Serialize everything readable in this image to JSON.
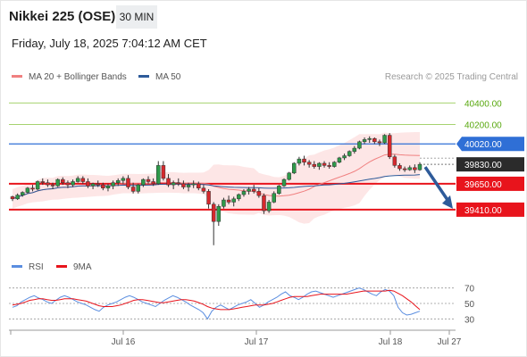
{
  "header": {
    "title": "Nikkei 225 (OSE)",
    "interval": "30 MIN",
    "datetime": "Friday, July 18, 2025 7:04:12 AM CET"
  },
  "legend": {
    "ma20": "MA 20 + Bollinger Bands",
    "ma50": "MA 50",
    "copyright": "Research © 2025 Trading Central"
  },
  "rsi_legend": {
    "rsi": "RSI",
    "ma9": "9MA"
  },
  "colors": {
    "ma20": "#f08080",
    "ma50": "#2e5b9a",
    "band": "#fde0e0",
    "resistance_green": "#a6d36f",
    "pivot_blue": "#2f6fd6",
    "support_red": "#e8141c",
    "current_dark": "#2b2b2b",
    "arrow": "#2e5b9a",
    "rsi": "#5b8ee0"
  },
  "chart_data": {
    "type": "candlestick",
    "y_range": [
      39020,
      40560
    ],
    "levels": [
      {
        "label": "40400.00",
        "value": 40400,
        "kind": "resistance"
      },
      {
        "label": "40200.00",
        "value": 40200,
        "kind": "resistance"
      },
      {
        "label": "40020.00",
        "value": 40020,
        "kind": "pivot"
      },
      {
        "label": "39830.00",
        "value": 39830,
        "kind": "last"
      },
      {
        "label": "39650.00",
        "value": 39650,
        "kind": "support"
      },
      {
        "label": "39410.00",
        "value": 39410,
        "kind": "support"
      }
    ],
    "x_ticks": [
      "Jul 16",
      "Jul 17",
      "Jul 18",
      "Jul 27"
    ],
    "rsi": {
      "levels": [
        70,
        50,
        30
      ],
      "labels": [
        "70",
        "50",
        "30"
      ],
      "rsi_values": [
        45,
        47,
        52,
        55,
        58,
        60,
        57,
        55,
        52,
        50,
        54,
        58,
        60,
        58,
        55,
        52,
        50,
        48,
        45,
        42,
        40,
        45,
        48,
        50,
        52,
        55,
        58,
        60,
        58,
        55,
        52,
        50,
        48,
        46,
        50,
        54,
        57,
        60,
        58,
        55,
        52,
        48,
        45,
        42,
        38,
        30,
        40,
        45,
        48,
        45,
        42,
        45,
        48,
        50,
        52,
        55,
        50,
        45,
        48,
        52,
        55,
        58,
        62,
        65,
        60,
        58,
        55,
        58,
        62,
        65,
        66,
        64,
        62,
        60,
        58,
        60,
        62,
        64,
        66,
        68,
        70,
        68,
        65,
        62,
        60,
        65,
        68,
        66,
        60,
        45,
        38,
        35,
        36,
        38,
        40
      ],
      "ma9_values": [
        48,
        49,
        50,
        52,
        54,
        55,
        56,
        56,
        55,
        54,
        54,
        55,
        56,
        56,
        56,
        55,
        54,
        53,
        51,
        49,
        47,
        46,
        46,
        46,
        47,
        48,
        50,
        52,
        54,
        55,
        55,
        54,
        53,
        52,
        51,
        51,
        52,
        53,
        54,
        55,
        55,
        54,
        53,
        51,
        49,
        46,
        44,
        43,
        42,
        42,
        42,
        43,
        44,
        45,
        46,
        47,
        48,
        48,
        48,
        49,
        50,
        52,
        54,
        56,
        58,
        59,
        59,
        59,
        59,
        60,
        61,
        62,
        62,
        62,
        62,
        62,
        62,
        62,
        63,
        64,
        65,
        66,
        66,
        66,
        66,
        66,
        66,
        67,
        66,
        63,
        60,
        56,
        52,
        47,
        42
      ]
    },
    "series": [
      {
        "name": "MA 20 + Bollinger Bands",
        "values": []
      },
      {
        "name": "MA 50",
        "values": []
      }
    ],
    "candles": [
      [
        39530,
        39540,
        39490,
        39510
      ],
      [
        39510,
        39560,
        39500,
        39545
      ],
      [
        39545,
        39580,
        39530,
        39570
      ],
      [
        39570,
        39620,
        39560,
        39610
      ],
      [
        39610,
        39640,
        39580,
        39600
      ],
      [
        39600,
        39680,
        39590,
        39670
      ],
      [
        39670,
        39700,
        39640,
        39660
      ],
      [
        39660,
        39690,
        39620,
        39640
      ],
      [
        39640,
        39660,
        39600,
        39630
      ],
      [
        39630,
        39700,
        39620,
        39690
      ],
      [
        39690,
        39710,
        39640,
        39660
      ],
      [
        39660,
        39680,
        39610,
        39640
      ],
      [
        39640,
        39690,
        39620,
        39670
      ],
      [
        39670,
        39720,
        39660,
        39700
      ],
      [
        39700,
        39720,
        39650,
        39670
      ],
      [
        39670,
        39700,
        39610,
        39630
      ],
      [
        39630,
        39660,
        39600,
        39650
      ],
      [
        39650,
        39680,
        39620,
        39640
      ],
      [
        39640,
        39660,
        39590,
        39610
      ],
      [
        39610,
        39650,
        39580,
        39630
      ],
      [
        39630,
        39680,
        39600,
        39660
      ],
      [
        39660,
        39700,
        39630,
        39680
      ],
      [
        39680,
        39720,
        39650,
        39700
      ],
      [
        39700,
        39730,
        39600,
        39620
      ],
      [
        39620,
        39660,
        39560,
        39580
      ],
      [
        39580,
        39650,
        39560,
        39640
      ],
      [
        39640,
        39700,
        39620,
        39690
      ],
      [
        39690,
        39720,
        39650,
        39670
      ],
      [
        39670,
        39700,
        39630,
        39650
      ],
      [
        39650,
        39860,
        39640,
        39820
      ],
      [
        39820,
        39860,
        39680,
        39700
      ],
      [
        39700,
        39740,
        39620,
        39640
      ],
      [
        39640,
        39680,
        39600,
        39660
      ],
      [
        39660,
        39700,
        39630,
        39650
      ],
      [
        39650,
        39680,
        39600,
        39620
      ],
      [
        39620,
        39660,
        39580,
        39640
      ],
      [
        39640,
        39680,
        39610,
        39650
      ],
      [
        39650,
        39670,
        39590,
        39610
      ],
      [
        39610,
        39640,
        39560,
        39580
      ],
      [
        39580,
        39600,
        39420,
        39460
      ],
      [
        39460,
        39480,
        39080,
        39300
      ],
      [
        39300,
        39460,
        39260,
        39440
      ],
      [
        39440,
        39520,
        39420,
        39500
      ],
      [
        39500,
        39540,
        39460,
        39480
      ],
      [
        39480,
        39530,
        39440,
        39510
      ],
      [
        39510,
        39560,
        39490,
        39550
      ],
      [
        39550,
        39600,
        39530,
        39580
      ],
      [
        39580,
        39620,
        39550,
        39600
      ],
      [
        39600,
        39640,
        39560,
        39580
      ],
      [
        39580,
        39610,
        39520,
        39540
      ],
      [
        39540,
        39560,
        39370,
        39400
      ],
      [
        39400,
        39500,
        39380,
        39480
      ],
      [
        39480,
        39580,
        39470,
        39560
      ],
      [
        39560,
        39640,
        39550,
        39630
      ],
      [
        39630,
        39700,
        39620,
        39690
      ],
      [
        39690,
        39760,
        39680,
        39750
      ],
      [
        39750,
        39850,
        39740,
        39840
      ],
      [
        39840,
        39900,
        39820,
        39880
      ],
      [
        39880,
        39910,
        39820,
        39850
      ],
      [
        39850,
        39870,
        39800,
        39830
      ],
      [
        39830,
        39860,
        39790,
        39810
      ],
      [
        39810,
        39850,
        39780,
        39840
      ],
      [
        39840,
        39860,
        39800,
        39820
      ],
      [
        39820,
        39850,
        39790,
        39810
      ],
      [
        39810,
        39860,
        39800,
        39850
      ],
      [
        39850,
        39900,
        39840,
        39890
      ],
      [
        39890,
        39930,
        39870,
        39910
      ],
      [
        39910,
        39960,
        39900,
        39950
      ],
      [
        39950,
        40000,
        39930,
        39980
      ],
      [
        39980,
        40050,
        39970,
        40040
      ],
      [
        40040,
        40080,
        40020,
        40060
      ],
      [
        40060,
        40090,
        40030,
        40070
      ],
      [
        40070,
        40080,
        40020,
        40040
      ],
      [
        40040,
        40060,
        40000,
        40030
      ],
      [
        40030,
        40110,
        40020,
        40100
      ],
      [
        40100,
        40120,
        39880,
        39900
      ],
      [
        39900,
        39920,
        39800,
        39820
      ],
      [
        39820,
        39840,
        39770,
        39790
      ],
      [
        39790,
        39810,
        39760,
        39780
      ],
      [
        39780,
        39820,
        39770,
        39800
      ],
      [
        39800,
        39830,
        39750,
        39780
      ],
      [
        39780,
        39850,
        39770,
        39830
      ]
    ]
  }
}
